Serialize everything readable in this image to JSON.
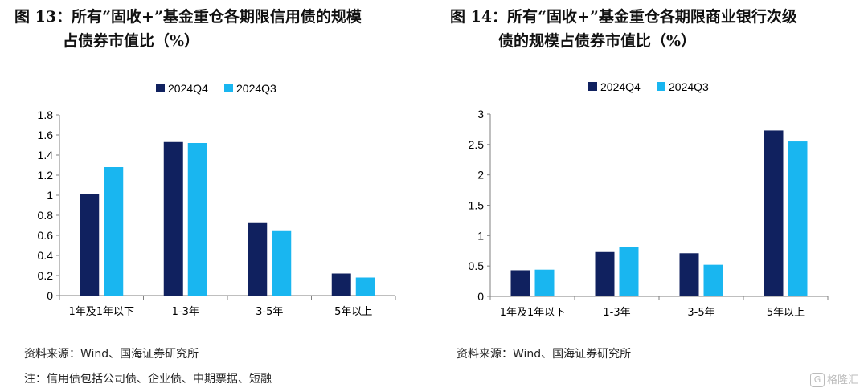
{
  "colors": {
    "series_q4": "#10215f",
    "series_q3": "#19b6f0",
    "axis": "#7f7f7f"
  },
  "left": {
    "title_line1": "图 13：所有“固收+”基金重仓各期限信用债的规模",
    "title_line2": "占债券市值比（%）",
    "source": "资料来源：Wind、国海证券研究所",
    "note": "注：信用债包括公司债、企业债、中期票据、短融"
  },
  "right": {
    "title_line1": "图 14：所有“固收+”基金重仓各期限商业银行次级",
    "title_line2": "债的规模占债券市值比（%）",
    "source": "资料来源：Wind、国海证券研究所"
  },
  "watermark": {
    "logo": "G",
    "text": "格隆汇"
  },
  "chart_data": [
    {
      "type": "bar",
      "categories": [
        "1年及1年以下",
        "1-3年",
        "3-5年",
        "5年以上"
      ],
      "series": [
        {
          "name": "2024Q4",
          "values": [
            1.01,
            1.53,
            0.73,
            0.22
          ]
        },
        {
          "name": "2024Q3",
          "values": [
            1.28,
            1.52,
            0.65,
            0.18
          ]
        }
      ],
      "ylim": [
        0,
        1.8
      ],
      "yticks": [
        "0",
        "0.2",
        "0.4",
        "0.6",
        "0.8",
        "1",
        "1.2",
        "1.4",
        "1.6",
        "1.8"
      ],
      "legend": "top-center",
      "grid": false
    },
    {
      "type": "bar",
      "categories": [
        "1年及1年以下",
        "1-3年",
        "3-5年",
        "5年以上"
      ],
      "series": [
        {
          "name": "2024Q4",
          "values": [
            0.43,
            0.73,
            0.71,
            2.73
          ]
        },
        {
          "name": "2024Q3",
          "values": [
            0.44,
            0.81,
            0.52,
            2.55
          ]
        }
      ],
      "ylim": [
        0,
        3
      ],
      "yticks": [
        "0",
        "0.5",
        "1",
        "1.5",
        "2",
        "2.5",
        "3"
      ],
      "legend": "top-center",
      "grid": false
    }
  ]
}
